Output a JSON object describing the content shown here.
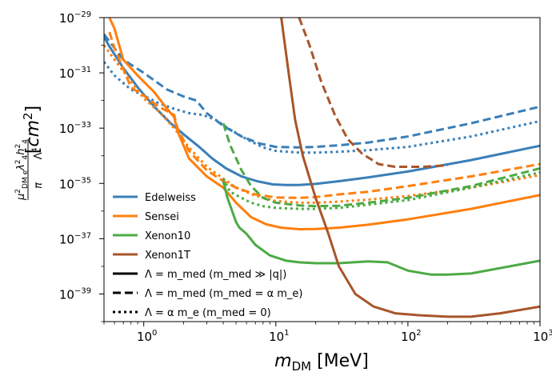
{
  "chart_data": {
    "type": "line",
    "title": "",
    "xlabel": "m_DM [MeV]",
    "ylabel": "μ²_DMe λ₄²h₄² / (π Λ⁴)  [cm²]",
    "xscale": "log",
    "yscale": "log",
    "xlim": [
      0.5,
      1000
    ],
    "ylim": [
      1e-40,
      1e-29
    ],
    "x_ticks": [
      {
        "value": 1,
        "label": "10^0"
      },
      {
        "value": 10,
        "label": "10^1"
      },
      {
        "value": 100,
        "label": "10^2"
      },
      {
        "value": 1000,
        "label": "10^3"
      }
    ],
    "y_ticks": [
      {
        "value": 1e-29,
        "label": "10^-29"
      },
      {
        "value": 1e-31,
        "label": "10^-31"
      },
      {
        "value": 1e-33,
        "label": "10^-33"
      },
      {
        "value": 1e-35,
        "label": "10^-35"
      },
      {
        "value": 1e-37,
        "label": "10^-37"
      },
      {
        "value": 1e-39,
        "label": "10^-39"
      }
    ],
    "experiments": [
      {
        "name": "Edelweiss",
        "color": "#3a7fb8"
      },
      {
        "name": "Sensei",
        "color": "#ff7f0e"
      },
      {
        "name": "Xenon10",
        "color": "#4caa44"
      },
      {
        "name": "Xenon1T",
        "color": "#a8552a"
      }
    ],
    "line_styles": [
      {
        "dash": "solid",
        "label": "Λ = m_med  (m_med ≫ |q|)"
      },
      {
        "dash": "dashed",
        "label": "Λ = m_med  (m_med = α m_e)"
      },
      {
        "dash": "dotted",
        "label": "Λ = α m_e   (m_med = 0)"
      }
    ],
    "series": [
      {
        "name": "Edelweiss",
        "style": "solid",
        "color": "#3a7fb8",
        "x": [
          0.5,
          0.55,
          0.7,
          0.9,
          1.2,
          1.6,
          2.0,
          2.6,
          3.3,
          4.2,
          5.5,
          7.2,
          9.5,
          12,
          15,
          20,
          30,
          50,
          100,
          300,
          1000
        ],
        "y": [
          2e-30,
          9e-31,
          1.5e-31,
          3e-32,
          6e-33,
          1.5e-33,
          6e-34,
          2.2e-34,
          8e-35,
          3.5e-35,
          1.8e-35,
          1.2e-35,
          9.2e-36,
          8.8e-36,
          8.8e-36,
          9.6e-36,
          1.2e-35,
          1.65e-35,
          2.7e-35,
          7e-35,
          2.3e-34
        ]
      },
      {
        "name": "Edelweiss",
        "style": "dashed",
        "color": "#3a7fb8",
        "x": [
          0.5,
          0.7,
          1.0,
          1.5,
          2.0,
          2.5,
          3.0,
          4.0,
          5.5,
          7.5,
          10,
          15,
          20,
          30,
          50,
          100,
          300,
          1000
        ],
        "y": [
          2.5e-30,
          3e-31,
          1e-31,
          2.5e-32,
          1.4e-32,
          1e-32,
          3.5e-33,
          1.2e-33,
          5e-34,
          2.8e-34,
          2.1e-34,
          2e-34,
          2.1e-34,
          2.4e-34,
          3e-34,
          5e-34,
          1.5e-33,
          6e-33
        ]
      },
      {
        "name": "Edelweiss",
        "style": "dotted",
        "color": "#3a7fb8",
        "x": [
          0.5,
          0.6,
          0.8,
          1.0,
          1.3,
          1.7,
          2.2,
          2.8,
          3.5,
          4.5,
          6,
          8,
          10,
          15,
          20,
          30,
          50,
          100,
          300,
          1000
        ],
        "y": [
          2.5e-31,
          8e-32,
          2.5e-32,
          1.5e-32,
          8e-33,
          5e-33,
          3.5e-33,
          3e-33,
          2e-33,
          9e-34,
          4e-34,
          2e-34,
          1.5e-34,
          1.3e-34,
          1.3e-34,
          1.4e-34,
          1.6e-34,
          2.1e-34,
          5e-34,
          1.8e-33
        ]
      },
      {
        "name": "Sensei",
        "style": "solid",
        "color": "#ff7f0e",
        "x": [
          0.55,
          0.6,
          0.7,
          0.9,
          1.2,
          1.5,
          1.7,
          1.8,
          2.2,
          3.0,
          4.0,
          5.0,
          6.5,
          8.5,
          11,
          15,
          20,
          30,
          50,
          100,
          300,
          1000
        ],
        "y": [
          1e-29,
          4e-30,
          3e-31,
          8e-32,
          2e-32,
          5e-33,
          2.5e-33,
          8e-34,
          8e-35,
          1.8e-35,
          7e-36,
          2e-36,
          6e-37,
          3.3e-37,
          2.5e-37,
          2.2e-37,
          2.25e-37,
          2.5e-37,
          3.2e-37,
          5e-37,
          1.2e-36,
          3.8e-36
        ]
      },
      {
        "name": "Sensei",
        "style": "dashed",
        "color": "#ff7f0e",
        "x": [
          0.55,
          0.6,
          0.8,
          1.0,
          1.3,
          1.7,
          1.8,
          2.2,
          3.0,
          4.0,
          5.0,
          7.0,
          10,
          15,
          20,
          30,
          50,
          100,
          300,
          1000
        ],
        "y": [
          3e-30,
          8e-31,
          3e-32,
          1.5e-32,
          6e-33,
          3e-33,
          1e-33,
          1.5e-34,
          3e-35,
          1.2e-35,
          7e-36,
          4e-36,
          3.1e-36,
          3e-36,
          3.2e-36,
          4e-36,
          5e-36,
          8e-36,
          1.8e-35,
          5e-35
        ]
      },
      {
        "name": "Sensei",
        "style": "dotted",
        "color": "#ff7f0e",
        "x": [
          0.5,
          0.6,
          0.8,
          1.0,
          1.3,
          1.7,
          2.2,
          3.0,
          4.0,
          5.0,
          7.0,
          10,
          15,
          20,
          30,
          50,
          100,
          300,
          1000
        ],
        "y": [
          1e-30,
          3e-31,
          5e-32,
          1.2e-32,
          4e-33,
          1e-33,
          2e-34,
          4e-35,
          1.5e-35,
          7e-36,
          3.6e-36,
          2.3e-36,
          2e-36,
          2e-36,
          2.2e-36,
          2.6e-36,
          3.5e-36,
          7e-36,
          2e-35
        ]
      },
      {
        "name": "Xenon10",
        "style": "solid",
        "color": "#4caa44",
        "x": [
          4.0,
          4.3,
          5.0,
          5.3,
          6.0,
          7.0,
          9.0,
          12,
          15,
          20,
          30,
          50,
          70,
          100,
          150,
          200,
          300,
          1000
        ],
        "y": [
          1.2e-35,
          3e-36,
          4e-37,
          2.5e-37,
          1.5e-37,
          6e-38,
          2.5e-38,
          1.6e-38,
          1.4e-38,
          1.3e-38,
          1.3e-38,
          1.5e-38,
          1.4e-38,
          7e-39,
          5e-39,
          5e-39,
          5.5e-39,
          1.6e-38
        ]
      },
      {
        "name": "Xenon10",
        "style": "dashed",
        "color": "#4caa44",
        "x": [
          4.0,
          4.5,
          5.5,
          6.5,
          8,
          10,
          15,
          20,
          30,
          50,
          100,
          300,
          1000
        ],
        "y": [
          1.5e-33,
          2.5e-34,
          3e-35,
          8e-36,
          3e-36,
          2e-36,
          1.6e-36,
          1.5e-36,
          1.55e-36,
          2e-36,
          3e-36,
          8e-36,
          3.5e-35
        ]
      },
      {
        "name": "Xenon10",
        "style": "dotted",
        "color": "#4caa44",
        "x": [
          4.0,
          4.5,
          5.5,
          6.5,
          8,
          10,
          15,
          20,
          30,
          50,
          100,
          300,
          1000
        ],
        "y": [
          1.5e-35,
          5e-36,
          3e-36,
          2e-36,
          1.5e-36,
          1.3e-36,
          1.2e-36,
          1.2e-36,
          1.3e-36,
          1.7e-36,
          2.5e-36,
          7e-36,
          2.5e-35
        ]
      },
      {
        "name": "Xenon1T",
        "style": "solid",
        "color": "#a8552a",
        "x": [
          11,
          12.5,
          14,
          16,
          20,
          25,
          30,
          40,
          55,
          80,
          120,
          200,
          300,
          500,
          1000
        ],
        "y": [
          1e-29,
          1e-31,
          2e-33,
          1e-34,
          3e-36,
          1.5e-37,
          1e-38,
          1e-39,
          3.5e-40,
          2e-40,
          1.7e-40,
          1.5e-40,
          1.5e-40,
          2e-40,
          3.5e-40
        ]
      },
      {
        "name": "Xenon1T",
        "style": "dashed",
        "color": "#a8552a",
        "x": [
          15,
          18,
          22,
          28,
          35,
          45,
          60,
          80,
          100,
          130,
          200
        ],
        "y": [
          1e-29,
          1e-30,
          5e-32,
          3e-33,
          4e-34,
          1.2e-34,
          5e-35,
          4e-35,
          4e-35,
          4e-35,
          4.5e-35
        ]
      }
    ]
  }
}
